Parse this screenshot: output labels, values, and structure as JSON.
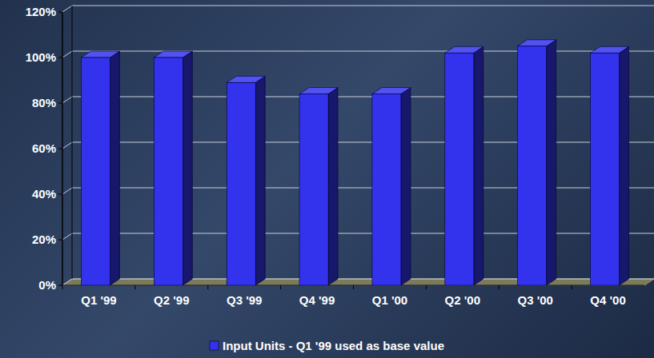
{
  "chart_data": {
    "type": "bar",
    "categories": [
      "Q1 '99",
      "Q2 '99",
      "Q3 '99",
      "Q4 '99",
      "Q1 '00",
      "Q2 '00",
      "Q3 '00",
      "Q4 '00"
    ],
    "series": [
      {
        "name": "Input Units - Q1 '99 used as base value",
        "color": "#3333ee",
        "values": [
          100,
          100,
          89,
          84,
          84,
          102,
          105,
          102
        ]
      }
    ],
    "ylim": [
      0,
      120
    ],
    "yticks": [
      {
        "value": 0,
        "label": "0%"
      },
      {
        "value": 20,
        "label": "20%"
      },
      {
        "value": 40,
        "label": "40%"
      },
      {
        "value": 60,
        "label": "60%"
      },
      {
        "value": 80,
        "label": "80%"
      },
      {
        "value": 100,
        "label": "100%"
      },
      {
        "value": 120,
        "label": "120%"
      }
    ],
    "grid": true,
    "legend": "bottom"
  }
}
